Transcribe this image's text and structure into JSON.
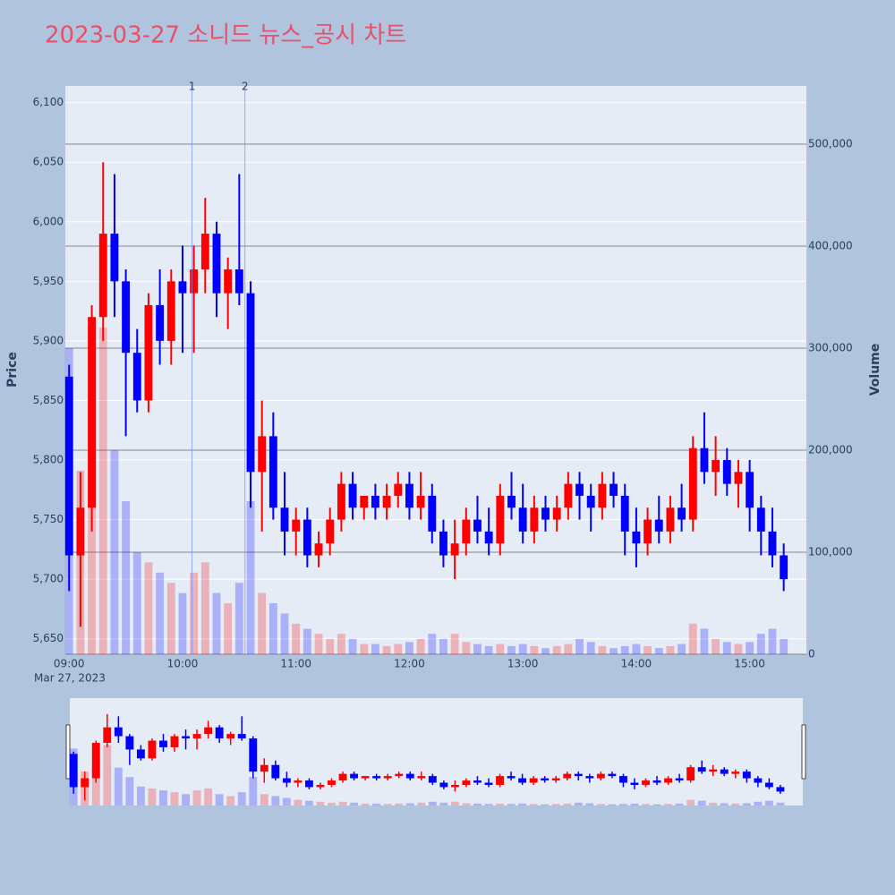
{
  "chart_data": {
    "type": "candlestick",
    "title": "2023-03-27 소니드 뉴스_공시 차트",
    "y_label": "Price",
    "y2_label": "Volume",
    "x_date_label": "Mar 27, 2023",
    "increasing_color": "#ff0000",
    "decreasing_color": "#0000ff",
    "xlim": [
      "08:58",
      "15:30"
    ],
    "xticks": [
      "09:00",
      "10:00",
      "11:00",
      "12:00",
      "13:00",
      "14:00",
      "15:00"
    ],
    "ylim": [
      5637,
      6114
    ],
    "yticks": [
      {
        "value": 5650,
        "label": "5,650"
      },
      {
        "value": 5700,
        "label": "5,700"
      },
      {
        "value": 5750,
        "label": "5,750"
      },
      {
        "value": 5800,
        "label": "5,800"
      },
      {
        "value": 5850,
        "label": "5,850"
      },
      {
        "value": 5900,
        "label": "5,900"
      },
      {
        "value": 5950,
        "label": "5,950"
      },
      {
        "value": 6000,
        "label": "6,000"
      },
      {
        "value": 6050,
        "label": "6,050"
      },
      {
        "value": 6100,
        "label": "6,100"
      }
    ],
    "y2lim": [
      0,
      557000
    ],
    "y2ticks": [
      0,
      {
        "value": 100000,
        "label": "100,000"
      },
      {
        "value": 200000,
        "label": "200,000"
      },
      {
        "value": 300000,
        "label": "300,000"
      },
      {
        "value": 400000,
        "label": "400,000"
      },
      {
        "value": 500000,
        "label": "500,000"
      }
    ],
    "annotations": [
      {
        "x": "10:05",
        "text": "1"
      },
      {
        "x": "10:33",
        "text": "2"
      }
    ],
    "x": [
      "09:00",
      "09:06",
      "09:12",
      "09:18",
      "09:24",
      "09:30",
      "09:36",
      "09:42",
      "09:48",
      "09:54",
      "10:00",
      "10:06",
      "10:12",
      "10:18",
      "10:24",
      "10:30",
      "10:36",
      "10:42",
      "10:48",
      "10:54",
      "11:00",
      "11:06",
      "11:12",
      "11:18",
      "11:24",
      "11:30",
      "11:36",
      "11:42",
      "11:48",
      "11:54",
      "12:00",
      "12:06",
      "12:12",
      "12:18",
      "12:24",
      "12:30",
      "12:36",
      "12:42",
      "12:48",
      "12:54",
      "13:00",
      "13:06",
      "13:12",
      "13:18",
      "13:24",
      "13:30",
      "13:36",
      "13:42",
      "13:48",
      "13:54",
      "14:00",
      "14:06",
      "14:12",
      "14:18",
      "14:24",
      "14:30",
      "14:36",
      "14:42",
      "14:48",
      "14:54",
      "15:00",
      "15:06",
      "15:12",
      "15:18"
    ],
    "open": [
      5870,
      5720,
      5760,
      5920,
      5990,
      5950,
      5890,
      5850,
      5930,
      5900,
      5950,
      5940,
      5960,
      5990,
      5940,
      5960,
      5940,
      5790,
      5820,
      5760,
      5740,
      5750,
      5720,
      5730,
      5750,
      5780,
      5760,
      5770,
      5760,
      5770,
      5780,
      5760,
      5770,
      5740,
      5720,
      5730,
      5750,
      5740,
      5730,
      5770,
      5760,
      5740,
      5760,
      5750,
      5760,
      5780,
      5770,
      5760,
      5780,
      5770,
      5740,
      5730,
      5750,
      5740,
      5760,
      5750,
      5810,
      5790,
      5800,
      5780,
      5790,
      5760,
      5740,
      5720
    ],
    "high": [
      5880,
      5790,
      5930,
      6050,
      6040,
      5960,
      5910,
      5940,
      5960,
      5960,
      5980,
      5980,
      6020,
      6000,
      5970,
      6040,
      5950,
      5850,
      5840,
      5790,
      5760,
      5760,
      5740,
      5760,
      5790,
      5790,
      5770,
      5780,
      5780,
      5790,
      5790,
      5790,
      5780,
      5750,
      5750,
      5760,
      5770,
      5760,
      5780,
      5790,
      5780,
      5770,
      5770,
      5770,
      5790,
      5790,
      5780,
      5790,
      5790,
      5780,
      5760,
      5760,
      5770,
      5770,
      5780,
      5820,
      5840,
      5820,
      5810,
      5800,
      5800,
      5770,
      5760,
      5730
    ],
    "low": [
      5690,
      5660,
      5740,
      5900,
      5920,
      5820,
      5840,
      5840,
      5880,
      5880,
      5890,
      5890,
      5940,
      5920,
      5910,
      5930,
      5760,
      5740,
      5750,
      5720,
      5720,
      5710,
      5710,
      5720,
      5740,
      5750,
      5750,
      5750,
      5750,
      5760,
      5750,
      5750,
      5730,
      5710,
      5700,
      5720,
      5730,
      5720,
      5720,
      5750,
      5730,
      5730,
      5740,
      5740,
      5750,
      5750,
      5740,
      5750,
      5760,
      5720,
      5710,
      5720,
      5730,
      5730,
      5740,
      5740,
      5780,
      5770,
      5770,
      5760,
      5740,
      5720,
      5710,
      5690
    ],
    "close": [
      5720,
      5760,
      5920,
      5990,
      5950,
      5890,
      5850,
      5930,
      5900,
      5950,
      5940,
      5960,
      5990,
      5940,
      5960,
      5940,
      5790,
      5820,
      5760,
      5740,
      5750,
      5720,
      5730,
      5750,
      5780,
      5760,
      5770,
      5760,
      5770,
      5780,
      5760,
      5770,
      5740,
      5720,
      5730,
      5750,
      5740,
      5730,
      5770,
      5760,
      5740,
      5760,
      5750,
      5760,
      5780,
      5770,
      5760,
      5780,
      5770,
      5740,
      5730,
      5750,
      5740,
      5760,
      5750,
      5810,
      5790,
      5800,
      5780,
      5790,
      5760,
      5740,
      5720,
      5700
    ],
    "volume": [
      300000,
      180000,
      250000,
      320000,
      200000,
      150000,
      100000,
      90000,
      80000,
      70000,
      60000,
      80000,
      90000,
      60000,
      50000,
      70000,
      150000,
      60000,
      50000,
      40000,
      30000,
      25000,
      20000,
      15000,
      20000,
      15000,
      10000,
      10000,
      8000,
      10000,
      12000,
      15000,
      20000,
      15000,
      20000,
      12000,
      10000,
      8000,
      10000,
      8000,
      10000,
      8000,
      6000,
      8000,
      10000,
      15000,
      12000,
      8000,
      6000,
      8000,
      10000,
      8000,
      6000,
      8000,
      10000,
      30000,
      25000,
      15000,
      12000,
      10000,
      12000,
      20000,
      25000,
      15000
    ]
  }
}
